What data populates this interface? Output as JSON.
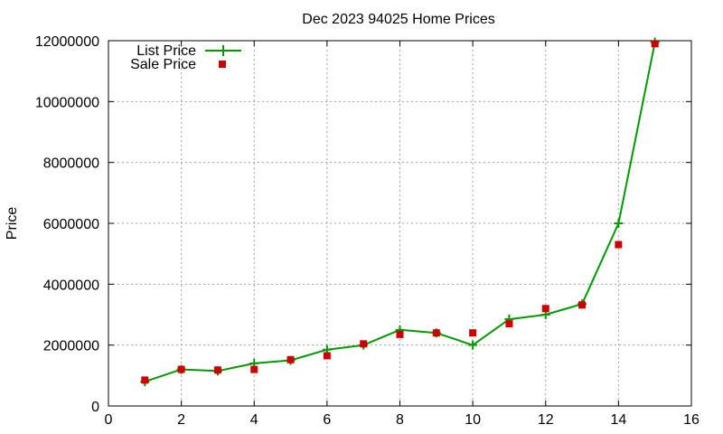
{
  "chart_data": {
    "type": "line",
    "title": "Dec 2023 94025 Home Prices",
    "xlabel": "",
    "ylabel": "Price",
    "xlim": [
      0,
      16
    ],
    "ylim": [
      0,
      12000000
    ],
    "x_ticks": [
      0,
      2,
      4,
      6,
      8,
      10,
      12,
      14,
      16
    ],
    "y_ticks": [
      0,
      2000000,
      4000000,
      6000000,
      8000000,
      10000000,
      12000000
    ],
    "x_tick_labels": [
      "0",
      "2",
      "4",
      "6",
      "8",
      "10",
      "12",
      "14",
      "16"
    ],
    "y_tick_labels": [
      "0",
      "2000000",
      "4000000",
      "6000000",
      "8000000",
      "10000000",
      "12000000"
    ],
    "grid": true,
    "legend_position": "top-left",
    "series": [
      {
        "name": "List Price",
        "style": "line with plus markers",
        "color": "#009900",
        "x": [
          1,
          2,
          3,
          4,
          5,
          6,
          7,
          8,
          9,
          10,
          11,
          12,
          13,
          14,
          15
        ],
        "y": [
          800000,
          1200000,
          1150000,
          1400000,
          1500000,
          1850000,
          2000000,
          2500000,
          2400000,
          2000000,
          2850000,
          3000000,
          3350000,
          6000000,
          11950000
        ]
      },
      {
        "name": "Sale Price",
        "style": "square markers",
        "color": "#cc0000",
        "x": [
          1,
          2,
          3,
          4,
          5,
          6,
          7,
          8,
          9,
          10,
          11,
          12,
          13,
          14,
          15
        ],
        "y": [
          850000,
          1200000,
          1180000,
          1200000,
          1520000,
          1650000,
          2040000,
          2350000,
          2400000,
          2400000,
          2700000,
          3200000,
          3320000,
          5300000,
          11900000
        ]
      }
    ]
  }
}
